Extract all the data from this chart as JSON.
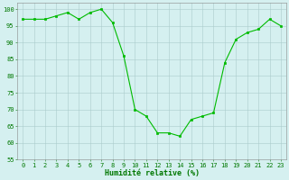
{
  "x": [
    0,
    1,
    2,
    3,
    4,
    5,
    6,
    7,
    8,
    9,
    10,
    11,
    12,
    13,
    14,
    15,
    16,
    17,
    18,
    19,
    20,
    21,
    22,
    23
  ],
  "y": [
    97,
    97,
    97,
    98,
    99,
    97,
    99,
    100,
    96,
    86,
    70,
    68,
    63,
    63,
    62,
    67,
    68,
    69,
    84,
    91,
    93,
    94,
    97,
    95
  ],
  "x_labels": [
    "0",
    "1",
    "2",
    "3",
    "4",
    "5",
    "6",
    "7",
    "8",
    "9",
    "10",
    "11",
    "12",
    "13",
    "14",
    "15",
    "16",
    "17",
    "18",
    "19",
    "20",
    "21",
    "22",
    "23"
  ],
  "xlabel": "Humidité relative (%)",
  "ylim": [
    55,
    102
  ],
  "yticks": [
    55,
    60,
    65,
    70,
    75,
    80,
    85,
    90,
    95,
    100
  ],
  "ytick_labels": [
    "55",
    "60",
    "65",
    "70",
    "75",
    "80",
    "85",
    "90",
    "95",
    "100"
  ],
  "line_color": "#00bb00",
  "marker_color": "#00bb00",
  "bg_color": "#d5f0f0",
  "grid_color": "#aacccc",
  "xlabel_color": "#007700",
  "tick_color": "#007700",
  "xlabel_fontsize": 6.0,
  "tick_fontsize": 5.0
}
